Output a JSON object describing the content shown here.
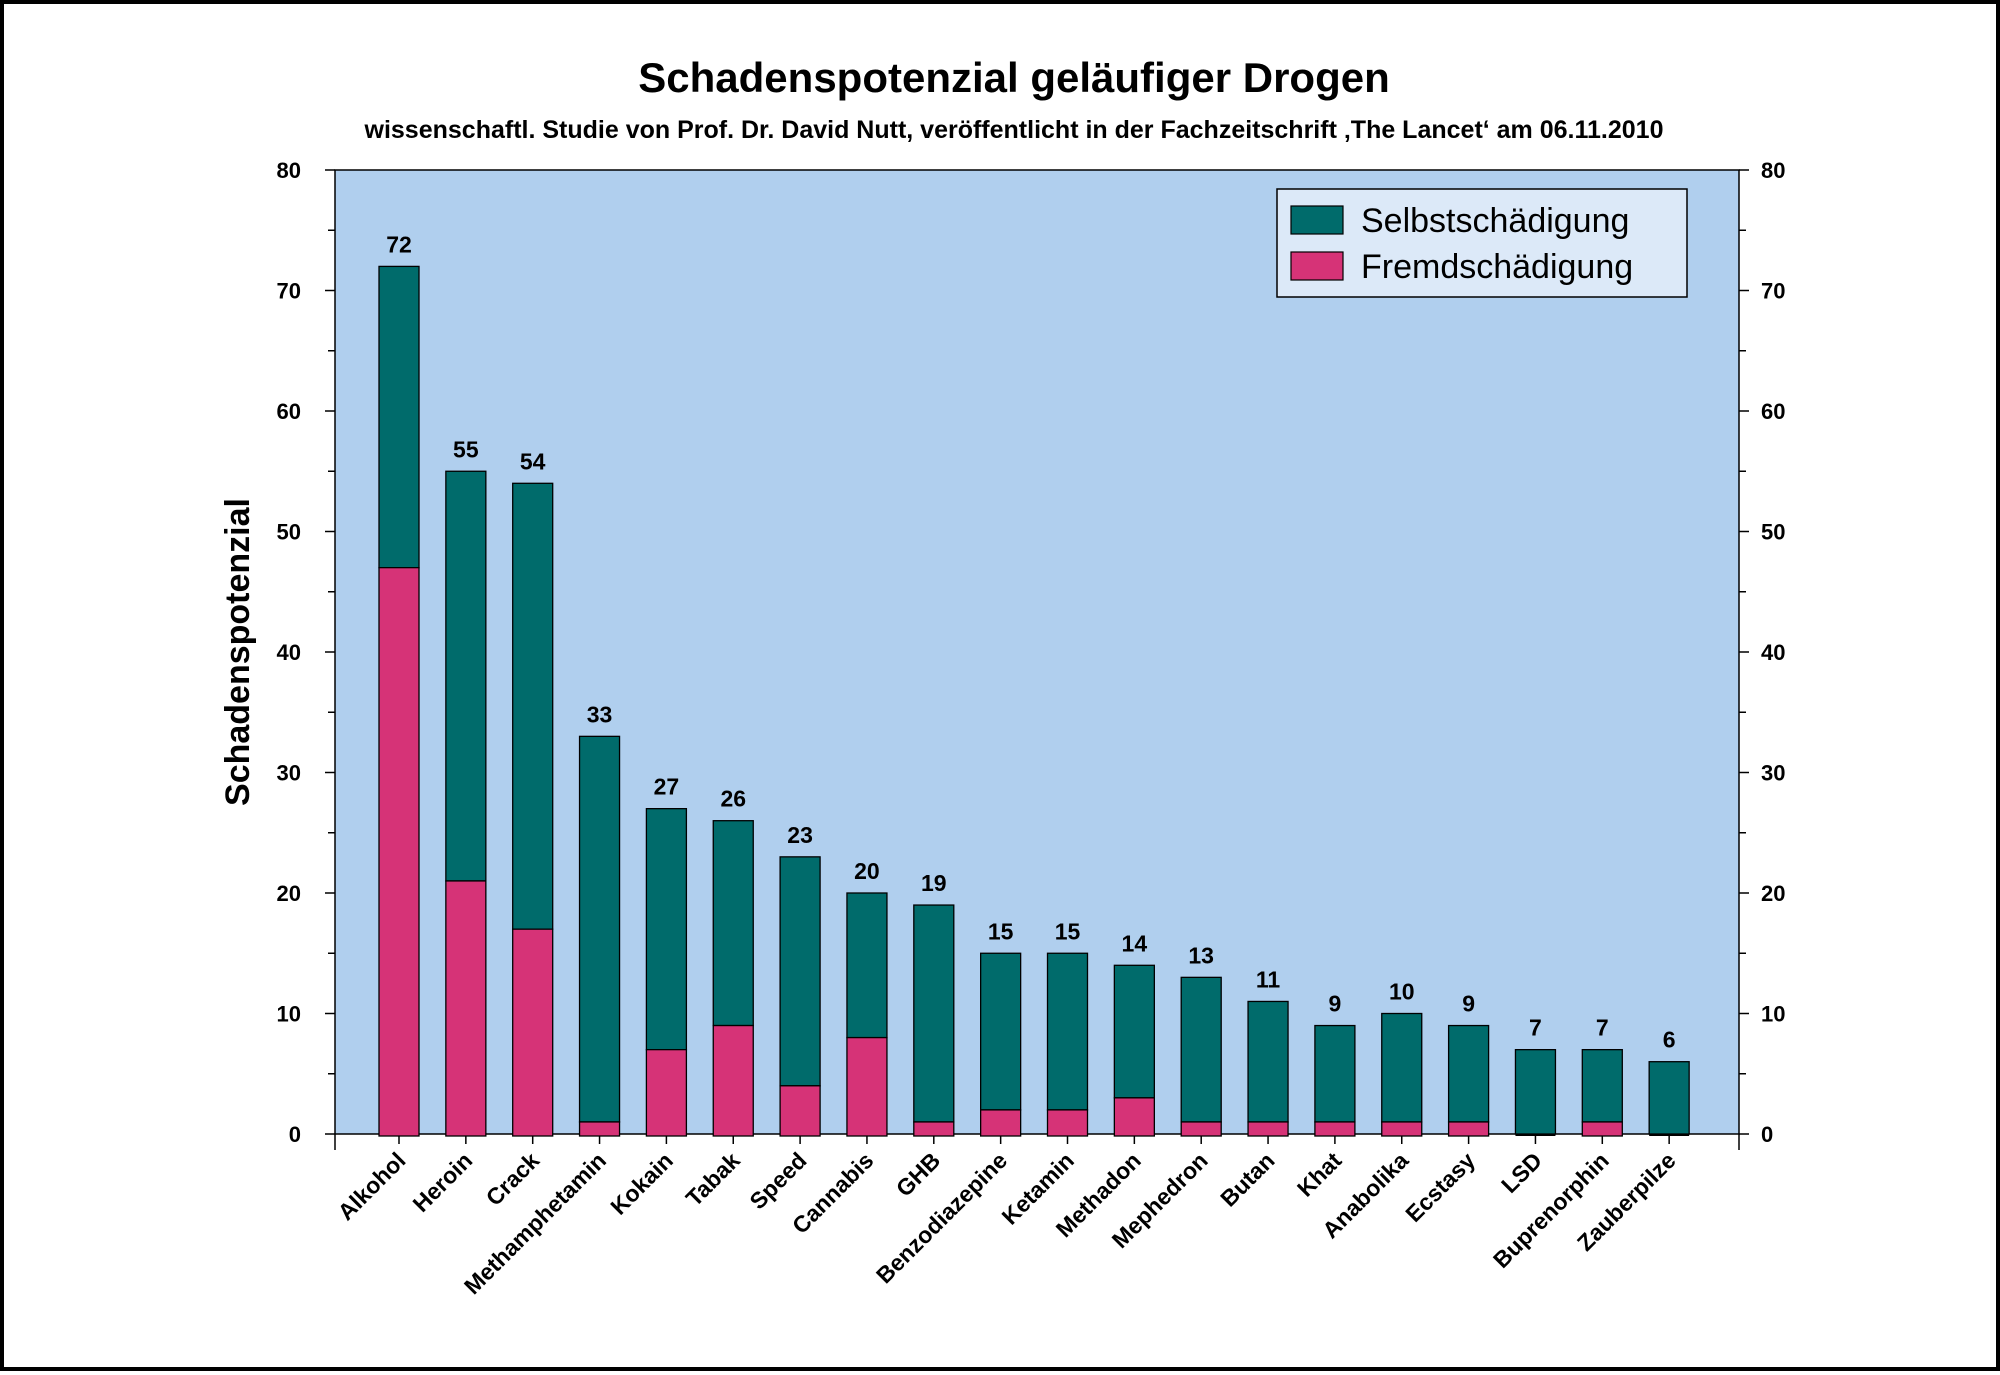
{
  "chart_data": {
    "type": "bar",
    "stacked": true,
    "title": "Schadenspotenzial geläufiger Drogen",
    "subtitle": "wissenschaftl. Studie von Prof. Dr. David Nutt, veröffentlicht in der Fachzeitschrift ‚The Lancet‘ am 06.11.2010",
    "ylabel": "Schadenspotenzial",
    "ylim": [
      0,
      80
    ],
    "yticks": [
      "0",
      "10",
      "20",
      "30",
      "40",
      "50",
      "60",
      "70",
      "80"
    ],
    "categories": [
      "Alkohol",
      "Heroin",
      "Crack",
      "Methamphetamin",
      "Kokain",
      "Tabak",
      "Speed",
      "Cannabis",
      "GHB",
      "Benzodiazepine",
      "Ketamin",
      "Methadon",
      "Mephedron",
      "Butan",
      "Khat",
      "Anabolika",
      "Ecstasy",
      "LSD",
      "Buprenorphin",
      "Zauberpilze"
    ],
    "series": [
      {
        "name": "Selbstschädigung",
        "color": "#006b6b",
        "values": [
          25,
          34,
          37,
          32,
          20,
          17,
          19,
          12,
          18,
          13,
          13,
          11,
          12,
          10,
          8,
          9,
          8,
          7,
          6,
          6
        ]
      },
      {
        "name": "Fremdschädigung",
        "color": "#d63377",
        "values": [
          47,
          21,
          17,
          1,
          7,
          9,
          4,
          8,
          1,
          2,
          2,
          3,
          1,
          1,
          1,
          1,
          1,
          0,
          1,
          0
        ]
      }
    ],
    "totals": [
      "72",
      "55",
      "54",
      "33",
      "27",
      "26",
      "23",
      "20",
      "19",
      "15",
      "15",
      "14",
      "13",
      "11",
      "9",
      "10",
      "9",
      "7",
      "7",
      "6"
    ],
    "legend_position": "top-right",
    "plot_background": "#b0cfee",
    "legend_background": "#dce9f8",
    "grid": false
  }
}
